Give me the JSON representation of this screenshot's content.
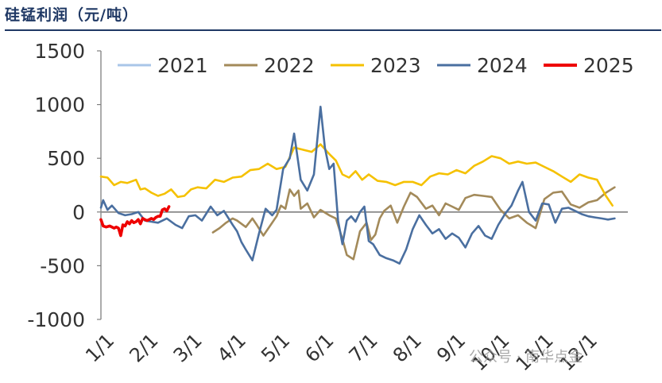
{
  "title": "硅锰利润（元/吨）",
  "watermark": "公众号 · 南华点金",
  "chart_data": {
    "type": "line",
    "title": "硅锰利润（元/吨）",
    "xlabel": "",
    "ylabel": "",
    "ylim": [
      -1000,
      1500
    ],
    "xlim": [
      0,
      12
    ],
    "yticks": [
      -1000,
      -500,
      0,
      500,
      1000,
      1500
    ],
    "ytick_labels": [
      "-1000",
      "-500",
      "0",
      "500",
      "1000",
      "1500"
    ],
    "xticks": [
      0,
      1,
      2,
      3,
      4,
      5,
      6,
      7,
      8,
      9,
      10,
      11
    ],
    "xtick_labels": [
      "1/1",
      "2/1",
      "3/1",
      "4/1",
      "5/1",
      "6/1",
      "7/1",
      "8/1",
      "9/1",
      "10/1",
      "11/1",
      "12/1"
    ],
    "legend_position": "top",
    "series": [
      {
        "name": "2021",
        "color": "#a9c6e8",
        "x": [],
        "y": []
      },
      {
        "name": "2022",
        "color": "#a38a5a",
        "x": [
          2.55,
          2.7,
          2.85,
          3.0,
          3.1,
          3.3,
          3.45,
          3.55,
          3.7,
          3.85,
          4.0,
          4.1,
          4.2,
          4.3,
          4.4,
          4.5,
          4.55,
          4.7,
          4.85,
          5.0,
          5.2,
          5.35,
          5.5,
          5.6,
          5.75,
          5.9,
          6.05,
          6.15,
          6.25,
          6.35,
          6.45,
          6.6,
          6.75,
          6.9,
          7.05,
          7.2,
          7.4,
          7.55,
          7.7,
          7.85,
          8.0,
          8.15,
          8.3,
          8.5,
          8.7,
          8.9,
          9.1,
          9.3,
          9.5,
          9.7,
          9.9,
          10.1,
          10.3,
          10.5,
          10.7,
          10.9,
          11.1,
          11.3,
          11.5,
          11.7
        ],
        "y": [
          -190,
          -150,
          -100,
          -60,
          -80,
          -140,
          -60,
          -120,
          -220,
          -130,
          -40,
          60,
          30,
          210,
          150,
          200,
          30,
          80,
          -50,
          20,
          -30,
          -60,
          -250,
          -400,
          -440,
          -180,
          -100,
          -260,
          -210,
          -60,
          10,
          60,
          -100,
          50,
          180,
          140,
          30,
          60,
          -30,
          80,
          50,
          20,
          130,
          160,
          150,
          140,
          20,
          -60,
          -30,
          -100,
          -150,
          120,
          180,
          190,
          70,
          40,
          90,
          110,
          180,
          230
        ]
      },
      {
        "name": "2023",
        "color": "#f5c100",
        "x": [
          0.0,
          0.15,
          0.3,
          0.45,
          0.6,
          0.8,
          0.9,
          1.0,
          1.15,
          1.3,
          1.45,
          1.6,
          1.75,
          1.9,
          2.05,
          2.2,
          2.4,
          2.6,
          2.8,
          3.0,
          3.2,
          3.4,
          3.6,
          3.8,
          4.0,
          4.2,
          4.4,
          4.6,
          4.8,
          5.0,
          5.2,
          5.35,
          5.5,
          5.65,
          5.8,
          5.95,
          6.1,
          6.3,
          6.5,
          6.7,
          6.9,
          7.1,
          7.3,
          7.5,
          7.7,
          7.9,
          8.1,
          8.3,
          8.5,
          8.7,
          8.9,
          9.1,
          9.3,
          9.5,
          9.7,
          9.9,
          10.1,
          10.3,
          10.5,
          10.7,
          10.9,
          11.1,
          11.3,
          11.5,
          11.65
        ],
        "y": [
          330,
          320,
          250,
          280,
          270,
          300,
          210,
          220,
          180,
          150,
          170,
          210,
          140,
          150,
          210,
          230,
          220,
          300,
          280,
          320,
          330,
          390,
          400,
          450,
          400,
          420,
          600,
          580,
          560,
          630,
          540,
          480,
          350,
          320,
          380,
          300,
          350,
          290,
          280,
          250,
          280,
          280,
          250,
          330,
          360,
          350,
          390,
          360,
          430,
          470,
          520,
          500,
          450,
          470,
          450,
          460,
          420,
          380,
          330,
          280,
          350,
          320,
          300,
          150,
          60
        ]
      },
      {
        "name": "2024",
        "color": "#4a6fa0",
        "x": [
          0.0,
          0.05,
          0.15,
          0.25,
          0.4,
          0.55,
          0.7,
          0.85,
          1.0,
          1.15,
          1.3,
          1.5,
          1.7,
          1.85,
          2.0,
          2.15,
          2.3,
          2.5,
          2.65,
          2.8,
          3.0,
          3.1,
          3.2,
          3.3,
          3.45,
          3.6,
          3.75,
          3.9,
          4.0,
          4.15,
          4.3,
          4.4,
          4.55,
          4.7,
          4.85,
          5.0,
          5.1,
          5.2,
          5.3,
          5.4,
          5.5,
          5.6,
          5.7,
          5.8,
          5.9,
          6.0,
          6.1,
          6.2,
          6.35,
          6.5,
          6.65,
          6.8,
          6.95,
          7.1,
          7.25,
          7.4,
          7.55,
          7.7,
          7.85,
          8.0,
          8.15,
          8.3,
          8.45,
          8.6,
          8.75,
          8.9,
          9.05,
          9.2,
          9.35,
          9.5,
          9.6,
          9.75,
          9.9,
          10.05,
          10.2,
          10.35,
          10.5,
          10.65,
          10.8,
          10.95,
          11.1,
          11.25,
          11.4,
          11.55,
          11.7
        ],
        "y": [
          40,
          110,
          20,
          60,
          -10,
          -30,
          -20,
          0,
          -80,
          -90,
          -100,
          -60,
          -120,
          -150,
          -40,
          -30,
          -80,
          50,
          -30,
          10,
          -120,
          -180,
          -280,
          -350,
          -450,
          -200,
          30,
          -30,
          20,
          400,
          500,
          730,
          300,
          200,
          350,
          980,
          600,
          400,
          450,
          -80,
          -300,
          -80,
          -40,
          -90,
          0,
          50,
          -270,
          -300,
          -400,
          -430,
          -450,
          -480,
          -350,
          -160,
          -30,
          -120,
          -200,
          -160,
          -250,
          -200,
          -240,
          -330,
          -200,
          -130,
          -220,
          -250,
          -120,
          -20,
          60,
          200,
          280,
          0,
          -80,
          80,
          70,
          -100,
          30,
          40,
          10,
          -20,
          -40,
          -50,
          -60,
          -70,
          -60
        ]
      },
      {
        "name": "2025",
        "color": "#ee0000",
        "x": [
          0.0,
          0.05,
          0.12,
          0.2,
          0.3,
          0.35,
          0.4,
          0.45,
          0.5,
          0.55,
          0.6,
          0.65,
          0.7,
          0.75,
          0.8,
          0.85,
          0.9,
          0.95,
          1.0,
          1.05,
          1.1,
          1.15,
          1.2,
          1.25,
          1.3,
          1.35,
          1.4,
          1.45,
          1.5,
          1.55
        ],
        "y": [
          -70,
          -130,
          -140,
          -130,
          -150,
          -140,
          -150,
          -220,
          -120,
          -130,
          -90,
          -110,
          -80,
          -100,
          -90,
          -70,
          -110,
          -60,
          -70,
          -80,
          -70,
          -60,
          -70,
          -50,
          -40,
          -40,
          20,
          30,
          10,
          50
        ]
      }
    ]
  }
}
